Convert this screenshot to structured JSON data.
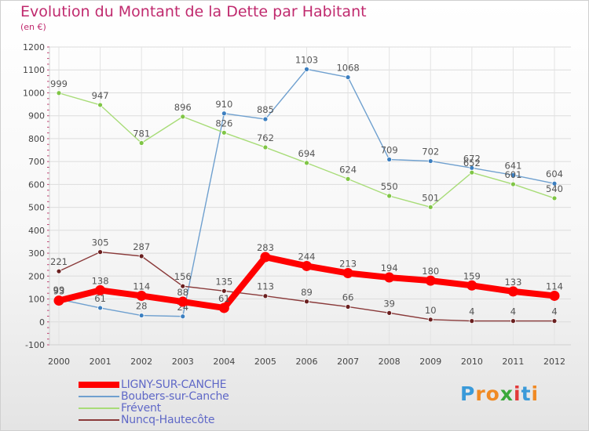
{
  "header": {
    "title": "Evolution du Montant de la Dette par Habitant",
    "subtitle": "(en €)"
  },
  "logo": {
    "text": "Proxiti",
    "colors": [
      "#3a9ad9",
      "#f08a24",
      "#f08a24",
      "#3aa83a",
      "#e23a3a",
      "#3a9ad9",
      "#f08a24"
    ]
  },
  "chart_data": {
    "type": "line",
    "title": "Evolution du Montant de la Dette par Habitant",
    "subtitle": "(en €)",
    "x": [
      "2000",
      "2001",
      "2002",
      "2003",
      "2004",
      "2005",
      "2006",
      "2007",
      "2008",
      "2009",
      "2010",
      "2011",
      "2012"
    ],
    "ylim": [
      -100,
      1200
    ],
    "yticks": [
      "-100",
      "0",
      "100",
      "200",
      "300",
      "400",
      "500",
      "600",
      "700",
      "800",
      "900",
      "1000",
      "1100",
      "1200"
    ],
    "grid": true,
    "legend_position": "bottom-left",
    "series": [
      {
        "name": "Boubers-sur-Canche",
        "color": "#6fa0cf",
        "marker_color": "#3c7fc0",
        "values": [
          99,
          61,
          28,
          24,
          910,
          885,
          1103,
          1068,
          709,
          702,
          672,
          641,
          604
        ],
        "labels": [
          "99",
          "61",
          "28",
          "24",
          "910",
          "885",
          "1103",
          "1068",
          "709",
          "702",
          "672",
          "641",
          "604"
        ]
      },
      {
        "name": "Frévent",
        "color": "#a8dc78",
        "marker_color": "#7fc545",
        "values": [
          999,
          947,
          781,
          896,
          826,
          762,
          694,
          624,
          550,
          501,
          652,
          601,
          540
        ],
        "labels": [
          "999",
          "947",
          "781",
          "896",
          "826",
          "762",
          "694",
          "624",
          "550",
          "501",
          "652",
          "601",
          "540"
        ]
      },
      {
        "name": "Nuncq-Hautecôte",
        "color": "#8a3a3a",
        "marker_color": "#6a1f1f",
        "values": [
          221,
          305,
          287,
          156,
          135,
          113,
          89,
          66,
          39,
          10,
          4,
          4,
          4
        ],
        "labels": [
          "221",
          "305",
          "287",
          "156",
          "135",
          "113",
          "89",
          "66",
          "39",
          "10",
          "4",
          "4",
          "4"
        ]
      },
      {
        "name": "LIGNY-SUR-CANCHE",
        "color": "#ff0000",
        "marker_color": "#ff0000",
        "values": [
          93,
          138,
          114,
          88,
          61,
          283,
          244,
          213,
          194,
          180,
          159,
          133,
          114
        ],
        "labels": [
          "93",
          "138",
          "114",
          "88",
          "61",
          "283",
          "244",
          "213",
          "194",
          "180",
          "159",
          "133",
          "114"
        ]
      }
    ],
    "legend": [
      "LIGNY-SUR-CANCHE",
      "Boubers-sur-Canche",
      "Frévent",
      "Nuncq-Hautecôte"
    ]
  }
}
